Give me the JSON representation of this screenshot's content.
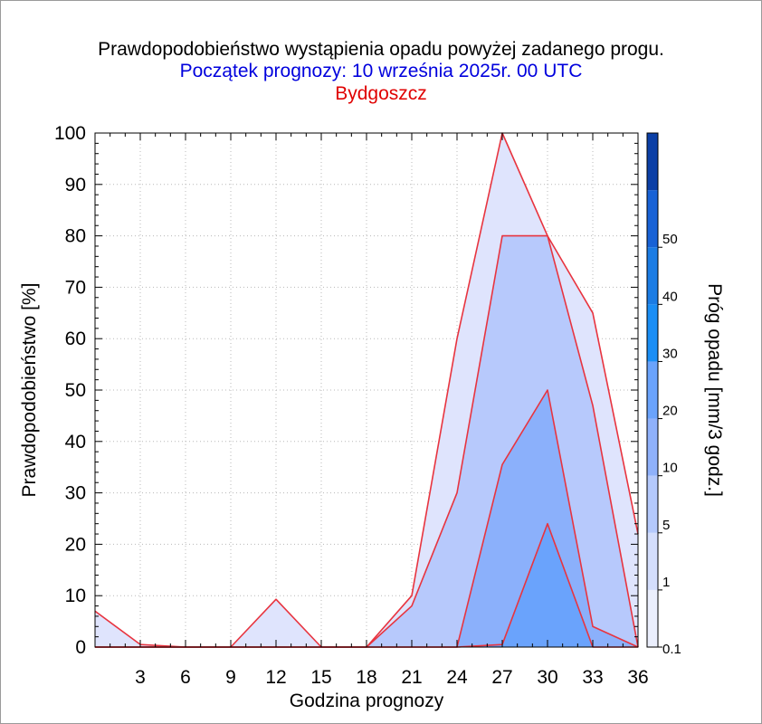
{
  "title": "Prawdopodobieństwo wystąpienia opadu powyżej zadanego progu.",
  "subtitle": "Początek prognozy: 10 września 2025r. 00 UTC",
  "location": "Bydgoszcz",
  "chart_data": {
    "type": "area",
    "xlabel": "Godzina prognozy",
    "ylabel": "Prawdopodobieństwo [%]",
    "xlim": [
      0,
      36
    ],
    "ylim": [
      0,
      100
    ],
    "x_ticks": [
      "3",
      "6",
      "9",
      "12",
      "15",
      "18",
      "21",
      "24",
      "27",
      "30",
      "33",
      "36"
    ],
    "y_ticks": [
      "0",
      "10",
      "20",
      "30",
      "40",
      "50",
      "60",
      "70",
      "80",
      "90",
      "100"
    ],
    "grid": true,
    "x": [
      0,
      3,
      6,
      9,
      12,
      15,
      18,
      21,
      24,
      27,
      30,
      33,
      36
    ],
    "series": [
      {
        "threshold": "0.1",
        "values": [
          7,
          0.5,
          0,
          0,
          9.3,
          0,
          0,
          10,
          60,
          100,
          80,
          65,
          22
        ],
        "color": "#dfe4fd"
      },
      {
        "threshold": "1",
        "values": [
          0,
          0,
          0,
          0,
          0,
          0,
          0,
          8,
          30,
          80,
          80,
          47,
          0
        ],
        "color": "#b7c9fc"
      },
      {
        "threshold": "5",
        "values": [
          0,
          0,
          0,
          0,
          0,
          0,
          0,
          0,
          0,
          35.5,
          50,
          4,
          0
        ],
        "color": "#8bb0fb"
      },
      {
        "threshold": "10",
        "values": [
          0,
          0,
          0,
          0,
          0,
          0,
          0,
          0,
          0,
          0.5,
          24,
          0,
          0
        ],
        "color": "#6aa3fc"
      }
    ],
    "line_color": "#e8343f",
    "colorbar": {
      "label": "Próg opadu [mm/3 godz.]",
      "ticks": [
        "0.1",
        "1",
        "5",
        "10",
        "20",
        "30",
        "40",
        "50"
      ],
      "colors": [
        "#ebeffd",
        "#d4defc",
        "#b4c9fc",
        "#8fb1fb",
        "#6aa3fc",
        "#1a8ef5",
        "#1b7ce4",
        "#1862d6",
        "#0b3fa6"
      ]
    }
  }
}
